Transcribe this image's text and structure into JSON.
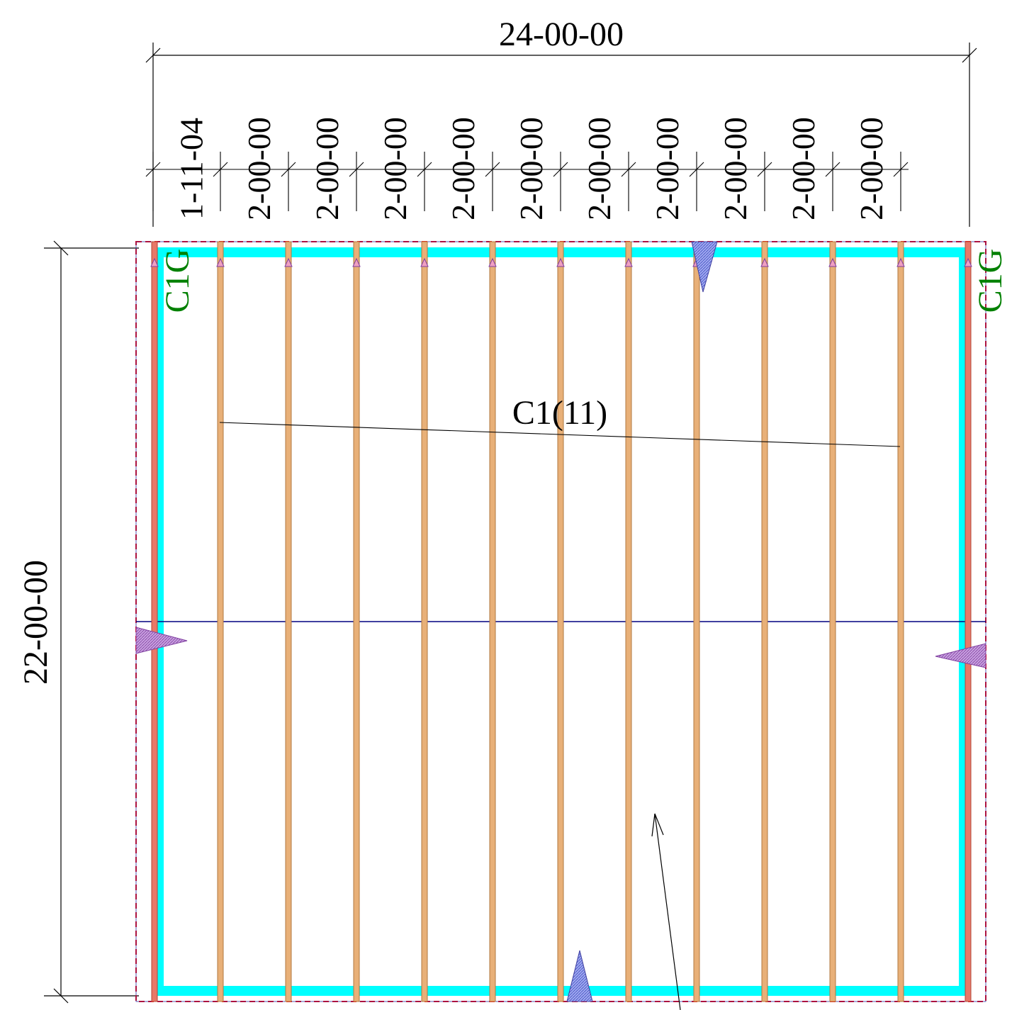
{
  "overall_width_label": "24-00-00",
  "overall_depth_label": "22-00-00",
  "spacing_labels": [
    "1-11-04",
    "2-00-00",
    "2-00-00",
    "2-00-00",
    "2-00-00",
    "2-00-00",
    "2-00-00",
    "2-00-00",
    "2-00-00",
    "2-00-00",
    "2-00-00"
  ],
  "truss_group_label": "C1(11)",
  "girder_label_left": "C1G",
  "girder_label_right": "C1G",
  "colors": {
    "plate": "#00ffff",
    "truss_fill": "#e8b078",
    "truss_edge": "#b07840",
    "girder_fill": "#e87868",
    "outline_dash": "#ff0000",
    "ridge": "#000080",
    "bearing": "#9040a0",
    "girder_text": "#008000",
    "dimension": "#000000"
  }
}
